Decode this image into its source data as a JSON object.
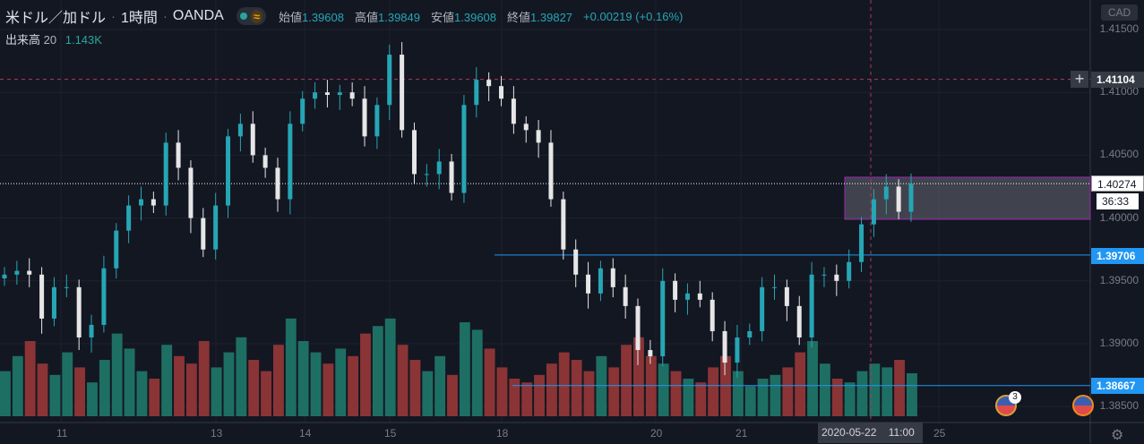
{
  "header": {
    "symbol": "米ドル／加ドル",
    "interval": "1時間",
    "exchange": "OANDA",
    "sep": "·",
    "open_label": "始値",
    "open": "1.39608",
    "high_label": "高値",
    "high": "1.39849",
    "low_label": "安値",
    "low": "1.39608",
    "close_label": "終値",
    "close": "1.39827",
    "change": "+0.00219 (+0.16%)",
    "wave_icon": "≈"
  },
  "volume_legend": {
    "label": "出来高",
    "length": "20",
    "value": "1.143K"
  },
  "price_axis": {
    "currency": "CAD",
    "ticks": [
      "1.41500",
      "1.41000",
      "1.40500",
      "1.40000",
      "1.39500",
      "1.39000",
      "1.38500"
    ],
    "crosshair_price": "1.41104",
    "last_price": "1.40274",
    "countdown": "36:33",
    "line1_price": "1.39706",
    "line2_price": "1.38667"
  },
  "time_axis": {
    "ticks": [
      "11",
      "13",
      "14",
      "15",
      "18",
      "20",
      "21",
      "25"
    ],
    "crosshair_time": "2020-05-22    11:00"
  },
  "events": {
    "badge_count": "3"
  },
  "colors": {
    "up": "#26a6b5",
    "down": "#e6e6e6",
    "vol_up": "#1e6f63",
    "vol_down": "#8a3436",
    "bg": "#131722",
    "hline": "#2196f3",
    "crosshair": "#b23a5a",
    "box": "#9c27b0"
  },
  "chart_data": {
    "type": "candlestick",
    "ylim": [
      1.3838,
      1.4165
    ],
    "x_dates": [
      "11",
      "13",
      "14",
      "15",
      "18",
      "20",
      "21",
      "22",
      "25"
    ],
    "closes": [
      1.3955,
      1.3958,
      1.3955,
      1.392,
      1.3945,
      1.3945,
      1.3905,
      1.3915,
      1.396,
      1.399,
      1.401,
      1.4015,
      1.401,
      1.406,
      1.404,
      1.4,
      1.3975,
      1.401,
      1.4065,
      1.4075,
      1.405,
      1.404,
      1.4015,
      1.4075,
      1.4095,
      1.41,
      1.4098,
      1.41,
      1.4095,
      1.4065,
      1.409,
      1.413,
      1.407,
      1.4035,
      1.4035,
      1.4045,
      1.402,
      1.409,
      1.411,
      1.4105,
      1.4095,
      1.4075,
      1.407,
      1.406,
      1.4015,
      1.3975,
      1.3955,
      1.394,
      1.396,
      1.3945,
      1.393,
      1.3895,
      1.389,
      1.395,
      1.3935,
      1.394,
      1.3935,
      1.391,
      1.3885,
      1.3905,
      1.391,
      1.3945,
      1.3945,
      1.393,
      1.3905,
      1.3955,
      1.3955,
      1.395,
      1.3965,
      1.3995,
      1.4015,
      1.4025,
      1.4005,
      1.40274
    ],
    "volumes_k": [
      1.2,
      1.6,
      2.0,
      1.4,
      1.1,
      1.7,
      1.3,
      0.9,
      1.5,
      2.2,
      1.8,
      1.2,
      1.0,
      1.9,
      1.6,
      1.4,
      2.0,
      1.3,
      1.7,
      2.1,
      1.5,
      1.2,
      1.9,
      2.6,
      2.0,
      1.7,
      1.4,
      1.8,
      1.6,
      2.2,
      2.4,
      2.6,
      1.9,
      1.5,
      1.2,
      1.6,
      1.1,
      2.5,
      2.3,
      1.8,
      1.3,
      1.0,
      0.9,
      1.1,
      1.4,
      1.7,
      1.5,
      1.2,
      1.6,
      1.3,
      1.9,
      2.1,
      1.6,
      1.4,
      1.2,
      1.0,
      0.9,
      1.3,
      1.6,
      1.2,
      0.8,
      1.0,
      1.1,
      1.3,
      1.7,
      2.0,
      1.4,
      1.0,
      0.9,
      1.2,
      1.4,
      1.3,
      1.5,
      1.143
    ],
    "hlines": [
      1.41104,
      1.40274,
      1.39706,
      1.38667
    ],
    "box": [
      1.40325,
      1.3999
    ]
  }
}
